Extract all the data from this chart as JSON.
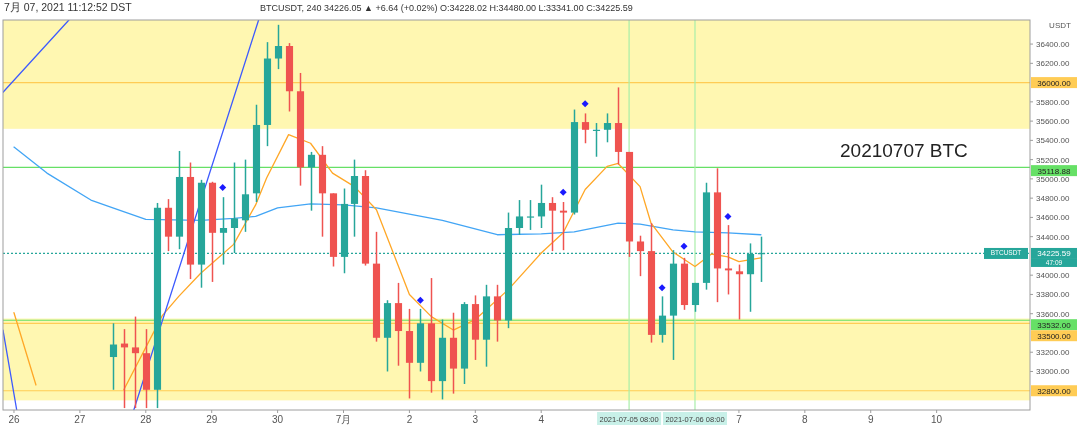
{
  "chart_data": {
    "type": "candlestick",
    "title": "20210707 BTC",
    "subtitle": "BTCUSDT, 240  34226.05 ▲ +6.64 (+0.02%)  O:34228.02  H:34480.00  L:33341.00  C:34225.59",
    "annotations": [
      "7月 07, 2021 11:12:52 DST",
      "USDT",
      "BTCUSDT",
      "47:09"
    ],
    "xlim": [
      "2021-06-25T20:00",
      "2021-07-11T10:00"
    ],
    "ylim": [
      32600,
      36650
    ],
    "xticks": [
      {
        "value": "2021-06-26",
        "label": "26"
      },
      {
        "value": "2021-06-27",
        "label": "27"
      },
      {
        "value": "2021-06-28",
        "label": "28"
      },
      {
        "value": "2021-06-29",
        "label": "29"
      },
      {
        "value": "2021-06-30",
        "label": "30"
      },
      {
        "value": "2021-07-01",
        "label": "7月"
      },
      {
        "value": "2021-07-02",
        "label": "2"
      },
      {
        "value": "2021-07-03",
        "label": "3"
      },
      {
        "value": "2021-07-04",
        "label": "4"
      },
      {
        "value": "2021-07-07",
        "label": "7"
      },
      {
        "value": "2021-07-08",
        "label": "8"
      },
      {
        "value": "2021-07-09",
        "label": "9"
      },
      {
        "value": "2021-07-10",
        "label": "10"
      }
    ],
    "yticks": [
      {
        "value": 33000,
        "label": "33000.00"
      },
      {
        "value": 33200,
        "label": "33200.00"
      },
      {
        "value": 33600,
        "label": "33600.00"
      },
      {
        "value": 33800,
        "label": "33800.00"
      },
      {
        "value": 34000,
        "label": "34000.00"
      },
      {
        "value": 34400,
        "label": "34400.00"
      },
      {
        "value": 34600,
        "label": "34600.00"
      },
      {
        "value": 34800,
        "label": "34800.00"
      },
      {
        "value": 35000,
        "label": "35000.00"
      },
      {
        "value": 35200,
        "label": "35200.00"
      },
      {
        "value": 35400,
        "label": "35400.00"
      },
      {
        "value": 35600,
        "label": "35600.00"
      },
      {
        "value": 35800,
        "label": "35800.00"
      },
      {
        "value": 36200,
        "label": "36200.00"
      },
      {
        "value": 36400,
        "label": "36400.00"
      }
    ],
    "bands": [
      {
        "axis": "y",
        "from": 35520,
        "to": 36650,
        "color": "#fff59d"
      },
      {
        "axis": "y",
        "from": 32700,
        "to": 33550,
        "color": "#fff59d"
      }
    ],
    "ref_lines": [
      {
        "axis": "y",
        "value": 36000,
        "label": "36000.00",
        "color": "#ffcc55"
      },
      {
        "axis": "y",
        "value": 35118.88,
        "label": "35118.88",
        "color": "#66e066"
      },
      {
        "axis": "y",
        "value": 34225.59,
        "label": "34225.59",
        "color": "#26a69a",
        "line_style": "dotted"
      },
      {
        "axis": "y",
        "value": 33532,
        "label": "33532.00",
        "color": "#66e066"
      },
      {
        "axis": "y",
        "value": 33500,
        "label": "33500.00",
        "color": "#ffcc55"
      },
      {
        "axis": "y",
        "value": 32800,
        "label": "32800.00",
        "color": "#ffcc55"
      },
      {
        "axis": "x",
        "value": "2021-07-05T08:00",
        "label": "2021-07-05  08:00",
        "color": "#a8eea8"
      },
      {
        "axis": "x",
        "value": "2021-07-06T08:00",
        "label": "2021-07-06  08:00",
        "color": "#a8eea8"
      }
    ],
    "x": [
      "2021-06-27T12:00",
      "2021-06-27T16:00",
      "2021-06-27T20:00",
      "2021-06-28T00:00",
      "2021-06-28T04:00",
      "2021-06-28T08:00",
      "2021-06-28T12:00",
      "2021-06-28T16:00",
      "2021-06-28T20:00",
      "2021-06-29T00:00",
      "2021-06-29T04:00",
      "2021-06-29T08:00",
      "2021-06-29T12:00",
      "2021-06-29T16:00",
      "2021-06-29T20:00",
      "2021-06-30T00:00",
      "2021-06-30T04:00",
      "2021-06-30T08:00",
      "2021-06-30T12:00",
      "2021-06-30T16:00",
      "2021-06-30T20:00",
      "2021-07-01T00:00",
      "2021-07-01T04:00",
      "2021-07-01T08:00",
      "2021-07-01T12:00",
      "2021-07-01T16:00",
      "2021-07-01T20:00",
      "2021-07-02T00:00",
      "2021-07-02T04:00",
      "2021-07-02T08:00",
      "2021-07-02T12:00",
      "2021-07-02T16:00",
      "2021-07-02T20:00",
      "2021-07-03T00:00",
      "2021-07-03T04:00",
      "2021-07-03T08:00",
      "2021-07-03T12:00",
      "2021-07-03T16:00",
      "2021-07-03T20:00",
      "2021-07-04T00:00",
      "2021-07-04T04:00",
      "2021-07-04T08:00",
      "2021-07-04T12:00",
      "2021-07-04T16:00",
      "2021-07-04T20:00",
      "2021-07-05T00:00",
      "2021-07-05T04:00",
      "2021-07-05T08:00",
      "2021-07-05T12:00",
      "2021-07-05T16:00",
      "2021-07-05T20:00",
      "2021-07-06T00:00",
      "2021-07-06T04:00",
      "2021-07-06T08:00",
      "2021-07-06T12:00",
      "2021-07-06T16:00",
      "2021-07-06T20:00",
      "2021-07-07T00:00",
      "2021-07-07T04:00",
      "2021-07-07T08:00"
    ],
    "ohlc": [
      [
        33150,
        33500,
        32810,
        33280
      ],
      [
        33290,
        33440,
        32620,
        33250
      ],
      [
        33250,
        33570,
        32620,
        33190
      ],
      [
        33190,
        33440,
        32620,
        32810
      ],
      [
        32810,
        34750,
        32620,
        34700
      ],
      [
        34700,
        34790,
        34250,
        34400
      ],
      [
        34400,
        35290,
        34270,
        35020
      ],
      [
        35020,
        35170,
        33960,
        34110
      ],
      [
        34110,
        34990,
        33870,
        34960
      ],
      [
        34960,
        34970,
        33930,
        34440
      ],
      [
        34440,
        34810,
        34110,
        34490
      ],
      [
        34490,
        35170,
        34230,
        34590
      ],
      [
        34570,
        35200,
        34450,
        34840
      ],
      [
        34850,
        35770,
        34760,
        35560
      ],
      [
        35560,
        36420,
        35340,
        36250
      ],
      [
        36250,
        36600,
        36140,
        36380
      ],
      [
        36380,
        36410,
        35700,
        35910
      ],
      [
        35910,
        36100,
        34930,
        35120
      ],
      [
        35120,
        35280,
        34670,
        35250
      ],
      [
        35250,
        35340,
        34400,
        34850
      ],
      [
        34850,
        34850,
        34090,
        34190
      ],
      [
        34190,
        34900,
        34020,
        34740
      ],
      [
        34740,
        35200,
        34400,
        35030
      ],
      [
        35030,
        35090,
        34100,
        34120
      ],
      [
        34120,
        34450,
        33310,
        33350
      ],
      [
        33350,
        33740,
        33000,
        33710
      ],
      [
        33710,
        33920,
        33060,
        33420
      ],
      [
        33420,
        33650,
        32720,
        33090
      ],
      [
        33090,
        33650,
        33000,
        33500
      ],
      [
        33500,
        33970,
        32780,
        32900
      ],
      [
        32900,
        33540,
        32710,
        33350
      ],
      [
        33350,
        33610,
        32770,
        33030
      ],
      [
        33030,
        33720,
        32870,
        33700
      ],
      [
        33700,
        33790,
        33120,
        33330
      ],
      [
        33330,
        33900,
        33050,
        33780
      ],
      [
        33780,
        33900,
        33310,
        33530
      ],
      [
        33530,
        34650,
        33450,
        34490
      ],
      [
        34490,
        34780,
        34420,
        34610
      ],
      [
        34600,
        34780,
        34470,
        34610
      ],
      [
        34610,
        34940,
        34490,
        34750
      ],
      [
        34750,
        34810,
        34250,
        34670
      ],
      [
        34670,
        34760,
        34260,
        34650
      ],
      [
        34650,
        35720,
        34630,
        35590
      ],
      [
        35590,
        35680,
        35370,
        35510
      ],
      [
        35510,
        35580,
        35230,
        35510
      ],
      [
        35510,
        35680,
        35380,
        35580
      ],
      [
        35580,
        35950,
        35150,
        35280
      ],
      [
        35280,
        35280,
        34190,
        34350
      ],
      [
        34350,
        34410,
        33990,
        34250
      ],
      [
        34250,
        34540,
        33300,
        33380
      ],
      [
        33380,
        33780,
        33300,
        33580
      ],
      [
        33580,
        34260,
        33120,
        34120
      ],
      [
        34120,
        34180,
        33640,
        33690
      ],
      [
        33690,
        33920,
        33620,
        33920
      ],
      [
        33920,
        34960,
        33850,
        34860
      ],
      [
        34860,
        35110,
        33720,
        34070
      ],
      [
        34070,
        34520,
        33800,
        34050
      ],
      [
        34040,
        34110,
        33540,
        34010
      ],
      [
        34010,
        34330,
        33620,
        34220
      ],
      [
        34230,
        34400,
        33930,
        34230
      ]
    ],
    "colors": [
      "#26a69a",
      "#ef5350",
      "#ef5350",
      "#ef5350",
      "#26a69a",
      "#ef5350",
      "#26a69a",
      "#ef5350",
      "#26a69a",
      "#ef5350",
      "#26a69a",
      "#26a69a",
      "#26a69a",
      "#26a69a",
      "#26a69a",
      "#26a69a",
      "#ef5350",
      "#ef5350",
      "#26a69a",
      "#ef5350",
      "#ef5350",
      "#26a69a",
      "#26a69a",
      "#ef5350",
      "#ef5350",
      "#26a69a",
      "#ef5350",
      "#ef5350",
      "#26a69a",
      "#ef5350",
      "#26a69a",
      "#ef5350",
      "#26a69a",
      "#ef5350",
      "#26a69a",
      "#ef5350",
      "#26a69a",
      "#26a69a",
      "#26a69a",
      "#26a69a",
      "#ef5350",
      "#ef5350",
      "#26a69a",
      "#ef5350",
      "#26a69a",
      "#26a69a",
      "#ef5350",
      "#ef5350",
      "#ef5350",
      "#ef5350",
      "#26a69a",
      "#26a69a",
      "#ef5350",
      "#26a69a",
      "#26a69a",
      "#ef5350",
      "#ef5350",
      "#ef5350",
      "#26a69a",
      "#26a69a"
    ],
    "series": [
      {
        "type": "line",
        "color": "#42a5f5",
        "x": [
          "2021-06-26T00:00",
          "2021-06-26T12:00",
          "2021-06-27T04:00",
          "2021-06-27T12:00",
          "2021-06-28T00:00",
          "2021-06-28T20:00",
          "2021-06-29T08:00",
          "2021-06-29T16:00",
          "2021-06-30T00:00",
          "2021-06-30T12:00",
          "2021-07-01T00:00",
          "2021-07-01T12:00",
          "2021-07-02T12:00",
          "2021-07-03T08:00",
          "2021-07-04T00:00",
          "2021-07-04T12:00",
          "2021-07-05T04:00",
          "2021-07-05T12:00",
          "2021-07-06T00:00",
          "2021-07-06T08:00",
          "2021-07-06T20:00",
          "2021-07-07T08:00"
        ],
        "values": [
          35330,
          35060,
          34780,
          34700,
          34580,
          34570,
          34590,
          34610,
          34700,
          34740,
          34730,
          34700,
          34570,
          34420,
          34430,
          34450,
          34540,
          34530,
          34470,
          34450,
          34440,
          34420
        ]
      },
      {
        "type": "line",
        "color": "#ffa726",
        "x": [
          "2021-06-26T00:00",
          "2021-06-26T08:00",
          "2021-06-27T00:00",
          "2021-06-27T16:00",
          "2021-06-28T06:00",
          "2021-06-28T12:00",
          "2021-06-28T20:00",
          "2021-06-29T08:00",
          "2021-06-29T16:00",
          "2021-06-29T20:00",
          "2021-06-30T04:00",
          "2021-06-30T12:00",
          "2021-06-30T20:00",
          "2021-07-01T04:00",
          "2021-07-01T12:00",
          "2021-07-02T00:00",
          "2021-07-02T08:00",
          "2021-07-02T16:00",
          "2021-07-03T00:00",
          "2021-07-03T12:00",
          "2021-07-04T00:00",
          "2021-07-04T08:00",
          "2021-07-04T16:00",
          "2021-07-05T00:00",
          "2021-07-05T04:00",
          "2021-07-05T12:00",
          "2021-07-05T16:00",
          "2021-07-06T00:00",
          "2021-07-06T08:00",
          "2021-07-06T14:00",
          "2021-07-06T20:00",
          "2021-07-07T00:00",
          "2021-07-07T08:00"
        ],
        "values": [
          33610,
          32860,
          null,
          32810,
          33580,
          33780,
          34020,
          34320,
          34730,
          35010,
          35460,
          35370,
          35060,
          34920,
          34680,
          33800,
          33570,
          33430,
          33540,
          33850,
          34230,
          34440,
          34890,
          35130,
          35160,
          34920,
          34540,
          34240,
          34090,
          34220,
          34190,
          34140,
          34180
        ]
      },
      {
        "type": "line",
        "color": "#3d5afe",
        "x": [
          "2021-06-25T20:00",
          "2021-06-26T20:00"
        ],
        "values": [
          35900,
          36650
        ]
      },
      {
        "type": "line",
        "color": "#3d5afe",
        "x": [
          "2021-06-27T19:38",
          "2021-06-29T17:05"
        ],
        "values": [
          32600,
          36650
        ]
      },
      {
        "type": "line",
        "color": "#3d5afe",
        "x": [
          "2021-06-25T20:00",
          "2021-06-26T01:00"
        ],
        "values": [
          33430,
          32600
        ]
      },
      {
        "type": "scatter",
        "marker": "diamond",
        "color": "#1a1aff",
        "x": [
          "2021-06-29T04:00",
          "2021-07-02T04:00",
          "2021-07-04T08:00",
          "2021-07-04T16:00",
          "2021-07-05T20:00",
          "2021-07-06T04:00",
          "2021-07-06T20:00"
        ],
        "values": [
          34910,
          33740,
          34860,
          35780,
          33870,
          34300,
          34610
        ]
      }
    ]
  }
}
